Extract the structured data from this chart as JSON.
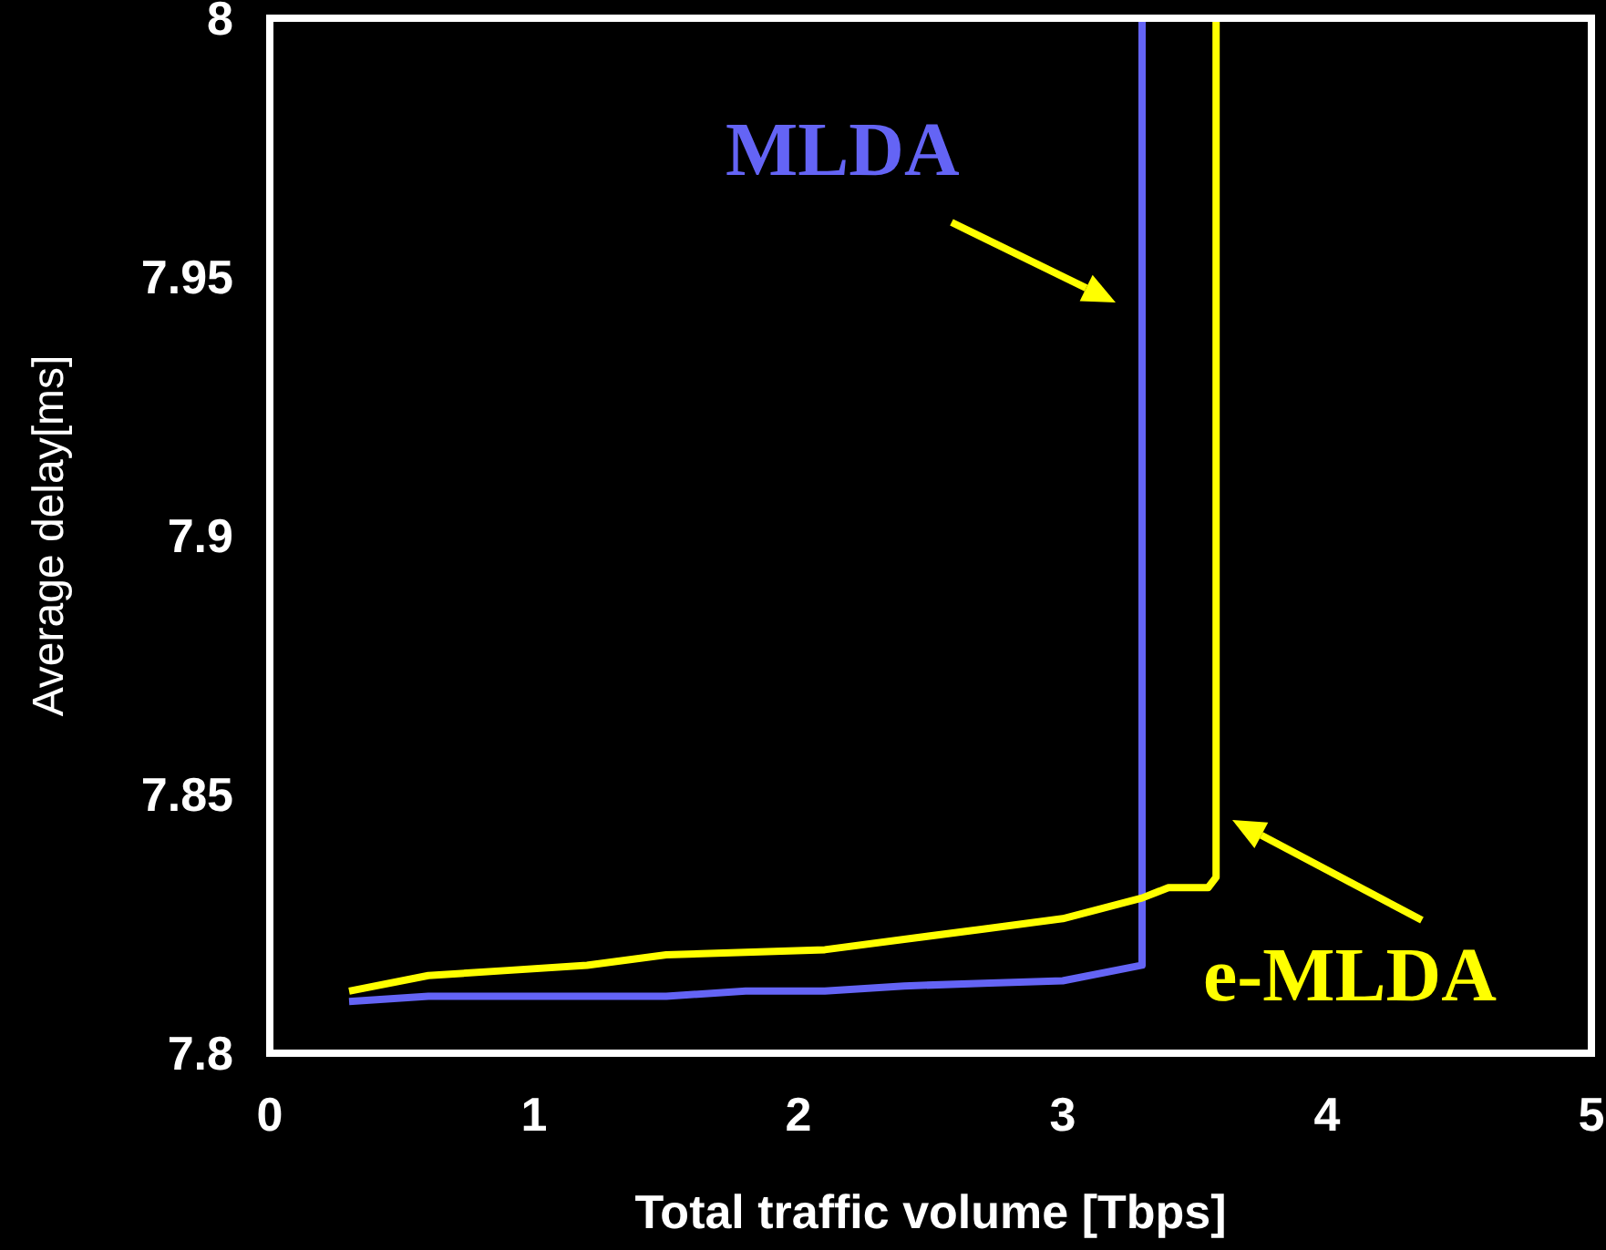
{
  "chart_data": {
    "type": "line",
    "xlabel": "Total traffic volume [Tbps]",
    "ylabel": "Average delay[ms]",
    "xlim": [
      0,
      5
    ],
    "xticks": [
      0,
      1,
      2,
      3,
      4,
      5
    ],
    "ylim": [
      7.8,
      8
    ],
    "yticks": [
      7.8,
      7.85,
      7.9,
      7.95,
      8
    ],
    "marker": "none",
    "line_style": "solid",
    "series": [
      {
        "name": "MLDA",
        "color": "#6464f5",
        "x": [
          0.3,
          0.6,
          0.9,
          1.2,
          1.5,
          1.8,
          2.1,
          2.4,
          2.7,
          3.0,
          3.3,
          3.3
        ],
        "values": [
          7.81,
          7.811,
          7.811,
          7.811,
          7.811,
          7.812,
          7.812,
          7.813,
          7.8135,
          7.814,
          7.817,
          8
        ]
      },
      {
        "name": "e-MLDA",
        "color": "#ffff00",
        "x": [
          0.3,
          0.6,
          0.9,
          1.2,
          1.5,
          1.8,
          2.1,
          2.4,
          2.7,
          3.0,
          3.3,
          3.4,
          3.55,
          3.58,
          3.58
        ],
        "values": [
          7.812,
          7.815,
          7.816,
          7.817,
          7.819,
          7.8195,
          7.82,
          7.822,
          7.824,
          7.826,
          7.83,
          7.832,
          7.832,
          7.834,
          8
        ]
      }
    ]
  }
}
